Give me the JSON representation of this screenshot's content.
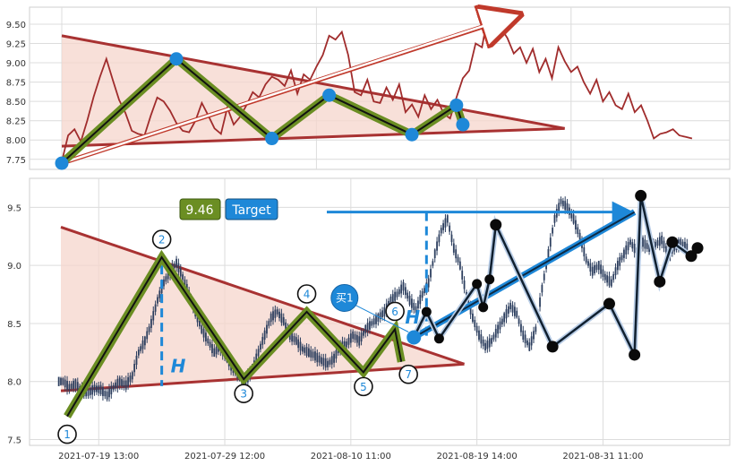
{
  "chart_data": [
    {
      "type": "line",
      "panel": "top",
      "title": "",
      "xlabel": "",
      "ylabel": "",
      "ylim": [
        7.62,
        9.72
      ],
      "xlim": [
        0,
        100
      ],
      "yticks": [
        7.75,
        8.0,
        8.25,
        8.5,
        8.75,
        9.0,
        9.25,
        9.5
      ],
      "ytick_labels": [
        "7.75",
        "8.00",
        "8.25",
        "8.50",
        "8.75",
        "9.00",
        "9.25",
        "9.50"
      ],
      "grid": true,
      "colors": {
        "line": "#a02c2c",
        "pattern": "#6b8e23",
        "pivot": "#1e88d8",
        "triangle": "#a83232",
        "fill": "#f6d5cc",
        "arrow": "#c0392b"
      },
      "series": [
        {
          "x": [
            0,
            1,
            2,
            3,
            4,
            5,
            6,
            7,
            8,
            9,
            10,
            11,
            12,
            13,
            14,
            15,
            16,
            17,
            18,
            19,
            20,
            21,
            22,
            23,
            24,
            25,
            26,
            27,
            28,
            29,
            30,
            31,
            32,
            33,
            34,
            35,
            36,
            37,
            38,
            39,
            40,
            41,
            42,
            43,
            44,
            45,
            46,
            47,
            48,
            49,
            50,
            51,
            52,
            53,
            54,
            55,
            56,
            57,
            58,
            59,
            60,
            61,
            62,
            63,
            64,
            65,
            66,
            67,
            68,
            69,
            70,
            71,
            72,
            73,
            74,
            75,
            76,
            77,
            78,
            79,
            80,
            81,
            82,
            83,
            84,
            85,
            86,
            87,
            88,
            89,
            90,
            91,
            92,
            93,
            94,
            95,
            96,
            97,
            98,
            99
          ],
          "values": [
            7.72,
            8.06,
            8.14,
            7.98,
            8.25,
            8.56,
            8.82,
            9.05,
            8.78,
            8.52,
            8.35,
            8.12,
            8.08,
            8.06,
            8.32,
            8.55,
            8.5,
            8.38,
            8.22,
            8.12,
            8.1,
            8.25,
            8.48,
            8.32,
            8.15,
            8.08,
            8.42,
            8.2,
            8.3,
            8.45,
            8.62,
            8.55,
            8.72,
            8.82,
            8.78,
            8.7,
            8.9,
            8.6,
            8.85,
            8.78,
            8.95,
            9.1,
            9.35,
            9.3,
            9.4,
            9.1,
            8.62,
            8.58,
            8.78,
            8.5,
            8.48,
            8.68,
            8.52,
            8.72,
            8.36,
            8.46,
            8.3,
            8.58,
            8.4,
            8.52,
            8.34,
            8.28,
            8.55,
            8.8,
            8.9,
            9.25,
            9.2,
            9.65,
            9.38,
            9.45,
            9.32,
            9.12,
            9.2,
            9.0,
            9.18,
            8.88,
            9.05,
            8.8,
            9.2,
            9.02,
            8.88,
            8.95,
            8.75,
            8.6,
            8.78,
            8.5,
            8.62,
            8.45,
            8.4,
            8.6,
            8.36,
            8.45,
            8.25,
            8.02,
            8.08,
            8.1,
            8.14,
            8.06,
            8.04,
            8.02
          ]
        }
      ],
      "pattern_points": {
        "x": [
          0,
          18,
          33,
          42,
          55,
          62,
          63
        ],
        "y": [
          7.7,
          9.05,
          8.02,
          8.58,
          8.07,
          8.45,
          8.2
        ]
      },
      "triangle": {
        "upper": [
          [
            0,
            9.35
          ],
          [
            79,
            8.15
          ]
        ],
        "lower": [
          [
            0,
            7.92
          ],
          [
            79,
            8.15
          ]
        ]
      },
      "arrow": {
        "from": [
          0,
          7.7
        ],
        "to": [
          100,
          9.62
        ]
      }
    },
    {
      "type": "candlestick",
      "panel": "bottom",
      "title": "",
      "xlabel": "",
      "ylabel": "",
      "ylim": [
        7.45,
        9.75
      ],
      "xlim": [
        0,
        100
      ],
      "yticks": [
        7.5,
        8.0,
        8.5,
        9.0,
        9.5
      ],
      "ytick_labels": [
        "7.5",
        "8.0",
        "8.5",
        "9.0",
        "9.5"
      ],
      "xticks": [
        6,
        26,
        46,
        66,
        86
      ],
      "xtick_labels": [
        "2021-07-19 13:00",
        "2021-07-29 12:00",
        "2021-08-10 11:00",
        "2021-08-19 14:00",
        "2021-08-31 11:00"
      ],
      "grid": true,
      "colors": {
        "candle": "#2d3f5f",
        "pattern": "#6b8e23",
        "target_line": "#1e88d8",
        "target_box": "#1e88d8",
        "price_box": "#6b8e23",
        "triangle": "#a83232",
        "fill": "#f6d5cc",
        "wave": "#102030"
      },
      "close": [
        8.0,
        7.95,
        7.98,
        7.92,
        7.9,
        7.94,
        7.93,
        7.88,
        7.95,
        8.0,
        7.97,
        8.05,
        8.25,
        8.35,
        8.5,
        8.7,
        8.85,
        8.95,
        9.02,
        8.9,
        8.75,
        8.6,
        8.45,
        8.35,
        8.25,
        8.3,
        8.2,
        8.1,
        8.05,
        8.0,
        8.1,
        8.25,
        8.4,
        8.55,
        8.6,
        8.52,
        8.4,
        8.35,
        8.28,
        8.25,
        8.22,
        8.18,
        8.15,
        8.2,
        8.3,
        8.32,
        8.4,
        8.35,
        8.45,
        8.5,
        8.55,
        8.6,
        8.7,
        8.75,
        8.82,
        8.7,
        8.62,
        8.75,
        8.85,
        9.1,
        9.3,
        9.4,
        9.15,
        9.0,
        8.75,
        8.55,
        8.4,
        8.3,
        8.35,
        8.45,
        8.55,
        8.65,
        8.58,
        8.4,
        8.3,
        8.45,
        8.8,
        9.1,
        9.4,
        9.55,
        9.5,
        9.4,
        9.25,
        9.05,
        8.95,
        9.0,
        8.9,
        8.85,
        9.0,
        9.1,
        9.2,
        9.12,
        9.2,
        9.15,
        9.18,
        9.22,
        9.1,
        9.15,
        9.2,
        9.15
      ],
      "pattern_points": {
        "x": [
          1,
          16,
          29,
          39,
          48,
          53,
          54
        ],
        "y": [
          7.7,
          9.07,
          8.02,
          8.6,
          8.08,
          8.45,
          8.17
        ]
      },
      "pattern_labels": [
        "1",
        "2",
        "3",
        "4",
        "5",
        "6",
        "7"
      ],
      "triangle": {
        "upper": [
          [
            0,
            9.33
          ],
          [
            64,
            8.15
          ]
        ],
        "lower": [
          [
            0,
            7.92
          ],
          [
            64,
            8.15
          ]
        ]
      },
      "height_marker": {
        "x": [
          16,
          58
        ],
        "label": "H"
      },
      "breakout": {
        "x": 56,
        "y": 8.38
      },
      "target": {
        "label": "Target",
        "value": "9.46",
        "y": 9.46,
        "x_from": 50,
        "x_to": 91
      },
      "buy_label": "买1",
      "buy_point": {
        "x": 45,
        "y": 8.72
      },
      "wave_points": {
        "x": [
          56,
          58,
          60,
          66,
          67,
          68,
          69,
          78,
          87,
          91,
          92,
          95,
          97,
          100,
          101
        ],
        "y": [
          8.38,
          8.6,
          8.37,
          8.84,
          8.64,
          8.88,
          9.35,
          8.3,
          8.67,
          8.23,
          9.6,
          8.86,
          9.2,
          9.08,
          9.15
        ]
      },
      "wave_big_points": {
        "x": [
          56,
          69,
          78,
          87,
          91,
          92,
          95,
          97,
          100,
          101
        ],
        "y": [
          8.38,
          9.35,
          8.3,
          8.67,
          8.23,
          9.6,
          8.86,
          9.2,
          9.08,
          9.15
        ]
      }
    }
  ]
}
